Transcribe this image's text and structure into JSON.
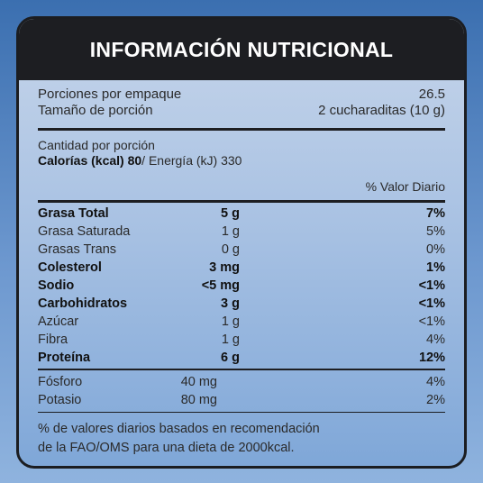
{
  "title": "INFORMACIÓN NUTRICIONAL",
  "servings": {
    "per_package_label": "Porciones por empaque",
    "per_package_value": "26.5",
    "size_label": "Tamaño de porción",
    "size_value": "2 cucharaditas (10 g)"
  },
  "amount": {
    "label": "Cantidad por porción",
    "calories_label": "Calorías (kcal) 80",
    "energy_label": "/ Energía (kJ) 330",
    "daily_value_header": "% Valor Diario"
  },
  "nutrients": [
    {
      "name": "Grasa Total",
      "qty": "5 g",
      "pct": "7%",
      "bold": true
    },
    {
      "name": "Grasa Saturada",
      "qty": "1 g",
      "pct": "5%",
      "bold": false
    },
    {
      "name": "Grasas Trans",
      "qty": "0 g",
      "pct": "0%",
      "bold": false
    },
    {
      "name": "Colesterol",
      "qty": "3 mg",
      "pct": "1%",
      "bold": true
    },
    {
      "name": "Sodio",
      "qty": "<5 mg",
      "pct": "<1%",
      "bold": true
    },
    {
      "name": "Carbohidratos",
      "qty": "3 g",
      "pct": "<1%",
      "bold": true
    },
    {
      "name": "Azúcar",
      "qty": "1 g",
      "pct": "<1%",
      "bold": false
    },
    {
      "name": "Fibra",
      "qty": "1 g",
      "pct": "4%",
      "bold": false
    },
    {
      "name": "Proteína",
      "qty": "6 g",
      "pct": "12%",
      "bold": true
    }
  ],
  "minerals": [
    {
      "name": "Fósforo",
      "qty": "40 mg",
      "pct": "4%"
    },
    {
      "name": "Potasio",
      "qty": "80 mg",
      "pct": "2%"
    }
  ],
  "footnote": {
    "line1": "% de valores diarios basados en recomendación",
    "line2": "de la FAO/OMS para una dieta de 2000kcal."
  }
}
